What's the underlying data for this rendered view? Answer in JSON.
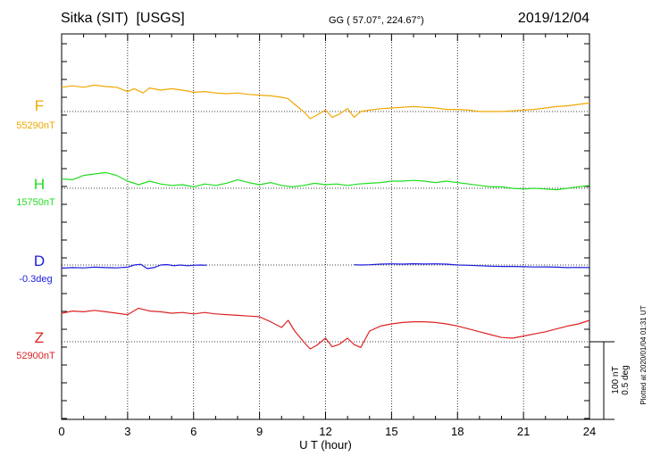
{
  "header": {
    "station": "Sitka (SIT)",
    "source": "[USGS]",
    "coords": "GG ( 57.07°, 224.67°)",
    "date": "2019/12/04"
  },
  "footer": {
    "scale_nt": "100 nT",
    "scale_deg": "0.5 deg",
    "plotted": "Plotted at 2020/01/04 01:31  UT"
  },
  "chart_data": {
    "type": "line",
    "xlabel": "U T (hour)",
    "xlim": [
      0,
      24
    ],
    "xticks": [
      "0",
      "3",
      "6",
      "9",
      "12",
      "15",
      "18",
      "21",
      "24"
    ],
    "grid": true,
    "scale": {
      "nT_per_division": 100,
      "deg_per_division": 0.5
    },
    "series": [
      {
        "name": "F",
        "baseline_label": "55290nT",
        "color": "#f0a800",
        "unit": "nT",
        "baseline": 55290,
        "x": [
          0,
          0.5,
          1,
          1.5,
          2,
          2.5,
          3,
          3.3,
          3.7,
          4,
          4.5,
          5,
          5.5,
          6,
          6.5,
          7,
          7.5,
          8,
          8.5,
          9,
          9.5,
          10,
          10.3,
          10.6,
          11,
          11.3,
          11.6,
          12,
          12.3,
          12.6,
          13,
          13.3,
          13.6,
          14,
          14.5,
          15,
          15.5,
          16,
          16.5,
          17,
          17.5,
          18,
          18.5,
          19,
          19.5,
          20,
          20.5,
          21,
          21.5,
          22,
          22.5,
          23,
          23.5,
          24
        ],
        "y": [
          55324,
          55326,
          55324,
          55327,
          55325,
          55324,
          55318,
          55322,
          55316,
          55323,
          55320,
          55322,
          55320,
          55317,
          55318,
          55316,
          55315,
          55316,
          55314,
          55313,
          55312,
          55310,
          55308,
          55300,
          55290,
          55280,
          55285,
          55292,
          55282,
          55286,
          55294,
          55282,
          55290,
          55292,
          55294,
          55295,
          55296,
          55297,
          55296,
          55295,
          55293,
          55293,
          55292,
          55290,
          55290,
          55290,
          55291,
          55292,
          55293,
          55295,
          55297,
          55298,
          55300,
          55302
        ]
      },
      {
        "name": "H",
        "baseline_label": "15750nT",
        "color": "#22dd22",
        "unit": "nT",
        "baseline": 15750,
        "x": [
          0,
          0.5,
          1,
          1.5,
          2,
          2.5,
          3,
          3.5,
          4,
          4.5,
          5,
          5.5,
          6,
          6.5,
          7,
          7.5,
          8,
          8.5,
          9,
          9.5,
          10,
          10.5,
          11,
          11.5,
          12,
          12.5,
          13,
          13.5,
          14,
          14.5,
          15,
          15.5,
          16,
          16.5,
          17,
          17.5,
          18,
          18.5,
          19,
          19.5,
          20,
          20.5,
          21,
          21.5,
          22,
          22.5,
          23,
          23.5,
          24
        ],
        "y": [
          15763,
          15762,
          15768,
          15770,
          15772,
          15768,
          15760,
          15755,
          15760,
          15756,
          15754,
          15755,
          15752,
          15756,
          15754,
          15757,
          15762,
          15758,
          15755,
          15758,
          15754,
          15752,
          15754,
          15757,
          15755,
          15756,
          15754,
          15756,
          15757,
          15758,
          15760,
          15760,
          15761,
          15760,
          15758,
          15760,
          15758,
          15756,
          15754,
          15752,
          15752,
          15750,
          15749,
          15750,
          15749,
          15748,
          15750,
          15752,
          15754
        ]
      },
      {
        "name": "D",
        "baseline_label": "-0.3deg",
        "color": "#1a1adc",
        "unit": "deg",
        "baseline": -0.3,
        "x": [
          0,
          0.5,
          1,
          1.5,
          2,
          2.5,
          3,
          3.3,
          3.6,
          3.9,
          4.2,
          4.5,
          4.8,
          5.1,
          5.4,
          5.7,
          6,
          6.3,
          6.6,
          null,
          13.3,
          13.6,
          14,
          14.5,
          15,
          15.5,
          16,
          16.5,
          17,
          17.5,
          18,
          18.5,
          19,
          19.5,
          20,
          20.5,
          21,
          21.5,
          22,
          22.5,
          23,
          23.5,
          24
        ],
        "y": [
          -0.322,
          -0.318,
          -0.32,
          -0.315,
          -0.318,
          -0.32,
          -0.315,
          -0.3,
          -0.295,
          -0.325,
          -0.318,
          -0.3,
          -0.297,
          -0.305,
          -0.3,
          -0.305,
          -0.302,
          -0.3,
          -0.301,
          null,
          -0.298,
          -0.3,
          -0.298,
          -0.294,
          -0.292,
          -0.294,
          -0.291,
          -0.293,
          -0.292,
          -0.294,
          -0.3,
          -0.302,
          -0.305,
          -0.308,
          -0.31,
          -0.31,
          -0.312,
          -0.314,
          -0.313,
          -0.315,
          -0.318,
          -0.317,
          -0.318
        ]
      },
      {
        "name": "Z",
        "baseline_label": "52900nT",
        "color": "#dd2222",
        "unit": "nT",
        "baseline": 52900,
        "x": [
          0,
          0.5,
          1,
          1.5,
          2,
          2.5,
          3,
          3.5,
          4,
          4.5,
          5,
          5.5,
          6,
          6.5,
          7,
          7.5,
          8,
          8.5,
          9,
          9.5,
          10,
          10.3,
          10.6,
          11,
          11.3,
          11.6,
          12,
          12.3,
          12.6,
          13,
          13.3,
          13.6,
          14,
          14.5,
          15,
          15.5,
          16,
          16.5,
          17,
          17.5,
          18,
          18.5,
          19,
          19.5,
          20,
          20.5,
          21,
          21.5,
          22,
          22.5,
          23,
          23.5,
          24
        ],
        "y": [
          52940,
          52943,
          52942,
          52944,
          52942,
          52940,
          52938,
          52947,
          52943,
          52942,
          52940,
          52941,
          52939,
          52941,
          52939,
          52938,
          52937,
          52936,
          52935,
          52928,
          52920,
          52930,
          52915,
          52900,
          52890,
          52895,
          52905,
          52893,
          52896,
          52905,
          52896,
          52892,
          52915,
          52922,
          52925,
          52927,
          52928,
          52928,
          52927,
          52925,
          52922,
          52918,
          52914,
          52910,
          52906,
          52905,
          52908,
          52911,
          52914,
          52918,
          52922,
          52925,
          52930
        ]
      }
    ]
  }
}
